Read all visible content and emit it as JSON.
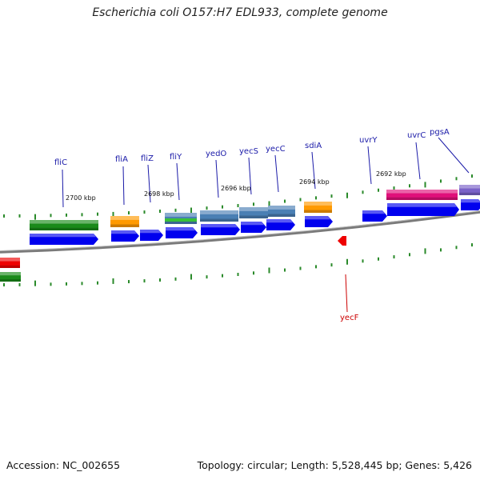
{
  "title": "Escherichia coli O157:H7 EDL933, complete genome",
  "footer": {
    "accession": "Accession: NC_002655",
    "stats": "Topology: circular; Length: 5,528,445 bp; Genes: 5,426"
  },
  "kbp_labels": [
    "2700 kbp",
    "2698 kbp",
    "2696 kbp",
    "2694 kbp",
    "2692 kbp"
  ],
  "gene_labels": [
    "fliC",
    "fliA",
    "fliZ",
    "fliY",
    "yedO",
    "yecS",
    "yecC",
    "sdiA",
    "uvrY",
    "uvrC",
    "pgsA"
  ],
  "reverse_gene_labels": [
    "yecF"
  ],
  "colors": {
    "blue": "#0000ee",
    "green": "#1a8a1a",
    "orange": "#ff9a00",
    "steelblue": "#4a7fb4",
    "magenta": "#e0107a",
    "purple": "#7a62c8",
    "red": "#ee0000",
    "tick": "#2a8a2a",
    "backbone": "#7a7a7a"
  }
}
